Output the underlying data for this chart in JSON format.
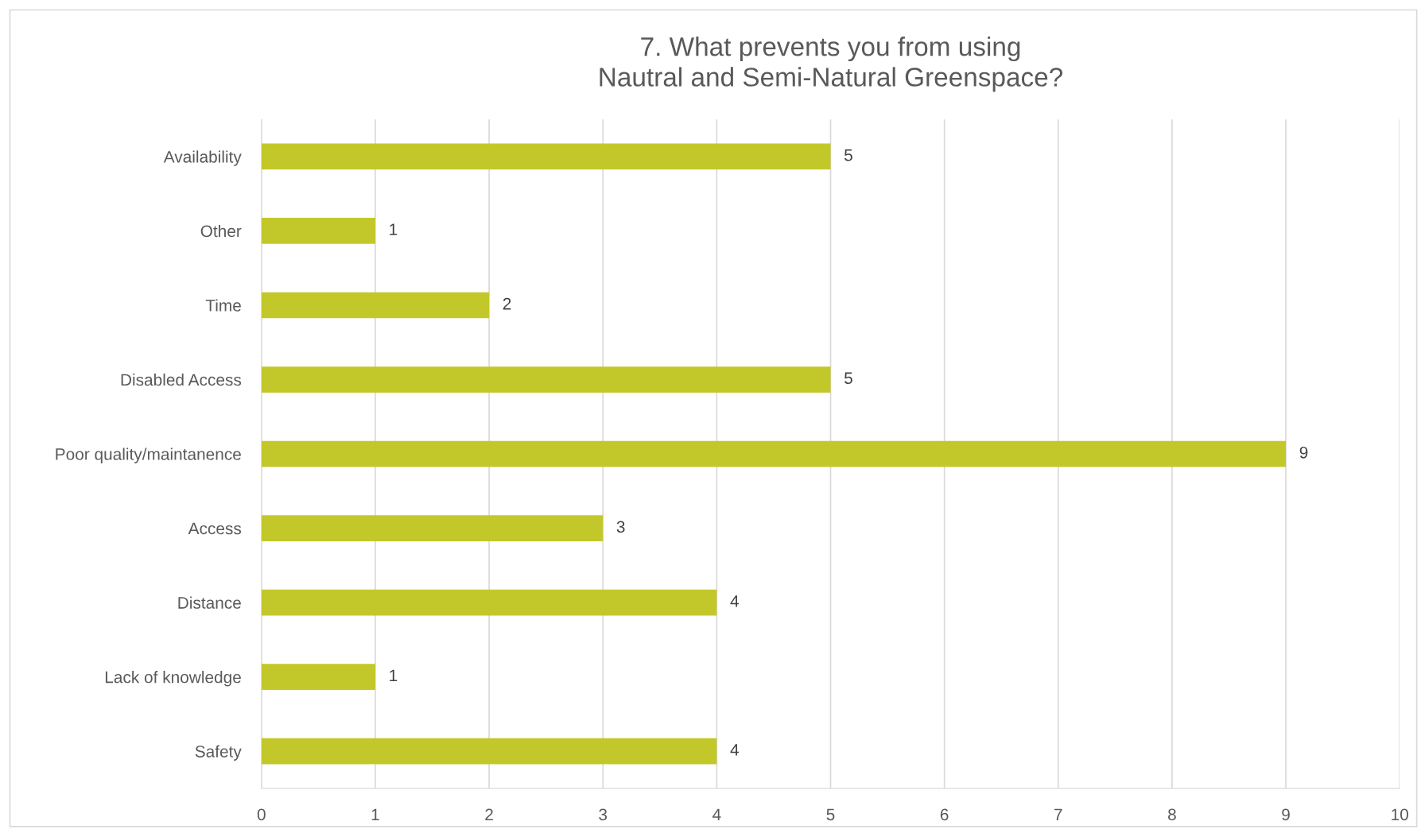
{
  "chart_data": {
    "type": "bar",
    "orientation": "horizontal",
    "title": "7. What prevents you from using\nNautral and Semi-Natural Greenspace?",
    "categories": [
      "Availability",
      "Other",
      "Time",
      "Disabled Access",
      "Poor quality/maintanence",
      "Access",
      "Distance",
      "Lack of knowledge",
      "Safety"
    ],
    "values": [
      5,
      1,
      2,
      5,
      9,
      3,
      4,
      1,
      4
    ],
    "color": "#c3c82a",
    "xlim": [
      0,
      10
    ],
    "xticks": [
      0,
      1,
      2,
      3,
      4,
      5,
      6,
      7,
      8,
      9,
      10
    ],
    "grid": "x",
    "data_labels": true
  }
}
